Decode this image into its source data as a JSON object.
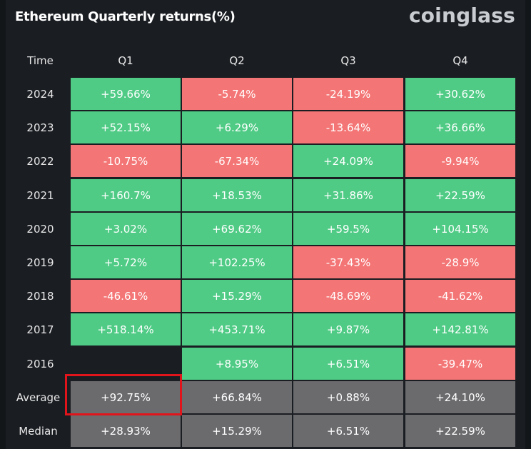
{
  "title": "Ethereum Quarterly returns(%)",
  "brand": "coinglass",
  "colors": {
    "positive": "#4fcb85",
    "negative": "#f47575",
    "summary": "#6b6b6e",
    "highlight": "#e0141a"
  },
  "table": {
    "columns": [
      "Time",
      "Q1",
      "Q2",
      "Q3",
      "Q4"
    ],
    "rows": [
      {
        "label": "2024",
        "values": [
          "+59.66%",
          "-5.74%",
          "-24.19%",
          "+30.62%"
        ]
      },
      {
        "label": "2023",
        "values": [
          "+52.15%",
          "+6.29%",
          "-13.64%",
          "+36.66%"
        ]
      },
      {
        "label": "2022",
        "values": [
          "-10.75%",
          "-67.34%",
          "+24.09%",
          "-9.94%"
        ]
      },
      {
        "label": "2021",
        "values": [
          "+160.7%",
          "+18.53%",
          "+31.86%",
          "+22.59%"
        ]
      },
      {
        "label": "2020",
        "values": [
          "+3.02%",
          "+69.62%",
          "+59.5%",
          "+104.15%"
        ]
      },
      {
        "label": "2019",
        "values": [
          "+5.72%",
          "+102.25%",
          "-37.43%",
          "-28.9%"
        ]
      },
      {
        "label": "2018",
        "values": [
          "-46.61%",
          "+15.29%",
          "-48.69%",
          "-41.62%"
        ]
      },
      {
        "label": "2017",
        "values": [
          "+518.14%",
          "+453.71%",
          "+9.87%",
          "+142.81%"
        ]
      },
      {
        "label": "2016",
        "values": [
          "",
          "+8.95%",
          "+6.51%",
          "-39.47%"
        ]
      }
    ],
    "summary": [
      {
        "label": "Average",
        "values": [
          "+92.75%",
          "+66.84%",
          "+0.88%",
          "+24.10%"
        ]
      },
      {
        "label": "Median",
        "values": [
          "+28.93%",
          "+15.29%",
          "+6.51%",
          "+22.59%"
        ]
      }
    ],
    "highlighted_cell": {
      "row": "Average",
      "column": "Q1"
    }
  }
}
